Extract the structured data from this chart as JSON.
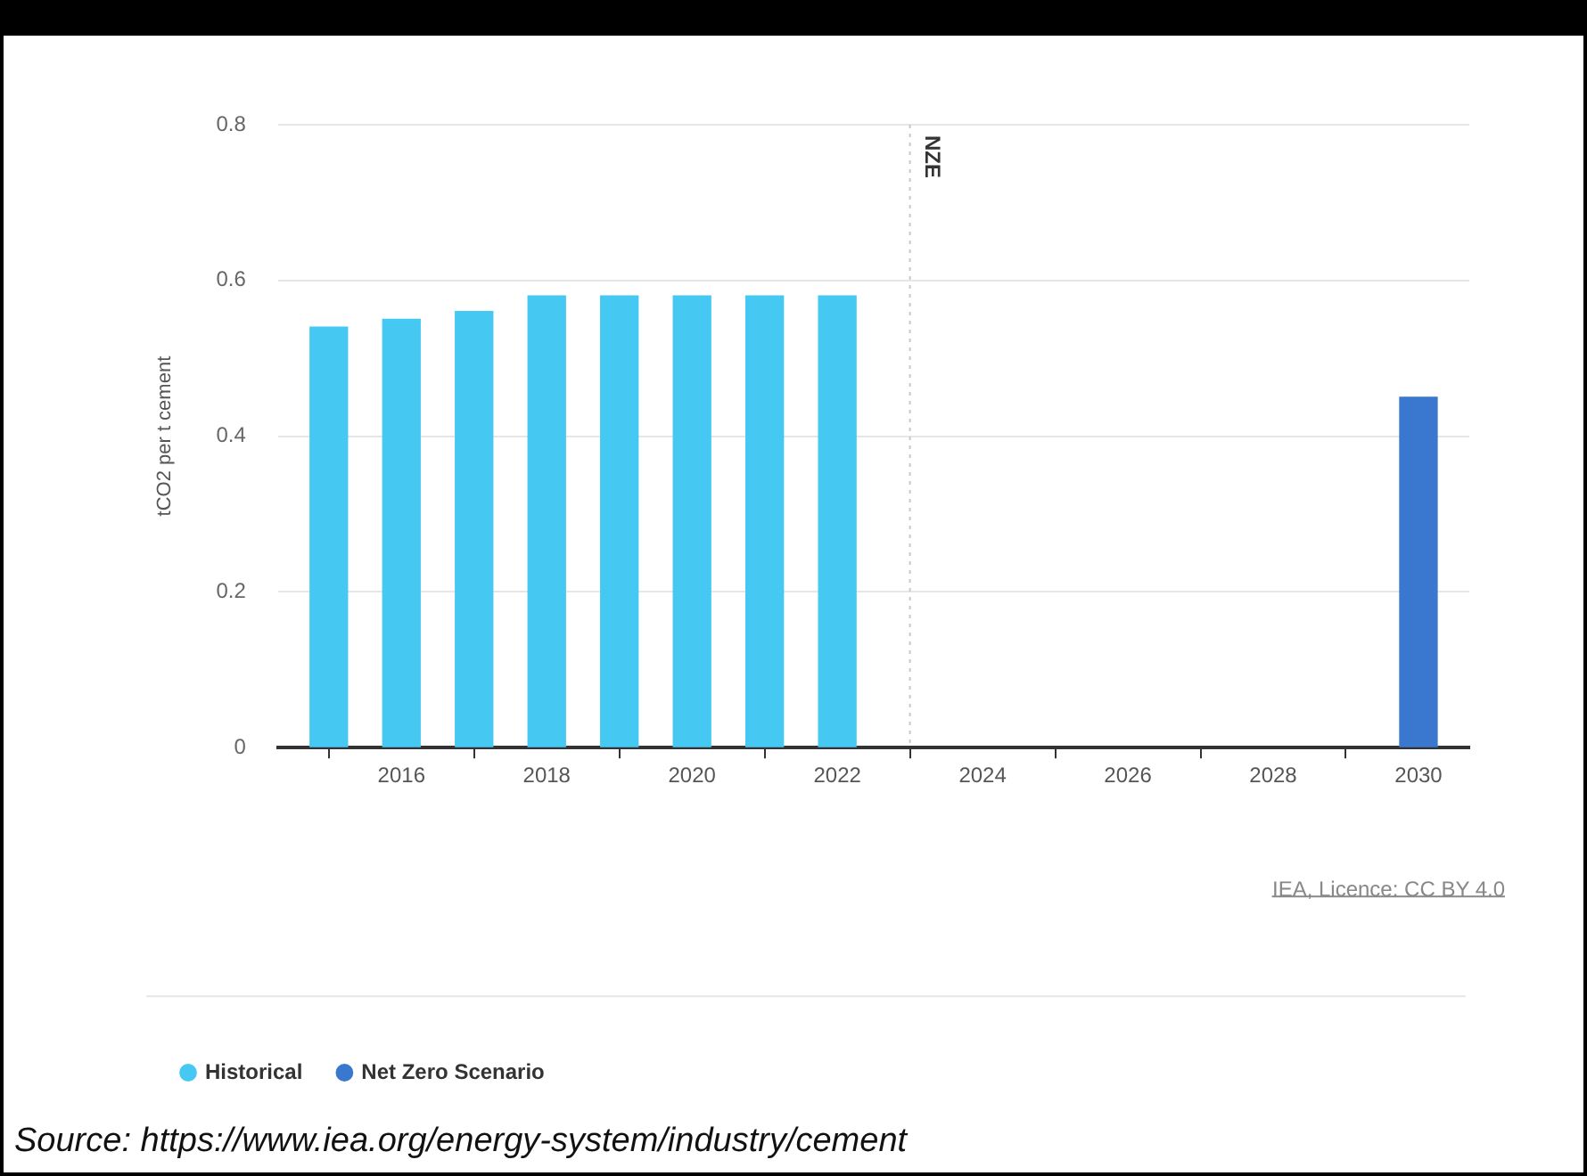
{
  "chart_data": {
    "type": "bar",
    "ylabel": "tCO2 per t cement",
    "x": [
      2015,
      2016,
      2017,
      2018,
      2019,
      2020,
      2021,
      2022,
      2030
    ],
    "series": [
      {
        "name": "Historical",
        "color": "#45c9f3",
        "values": [
          0.54,
          0.55,
          0.56,
          0.58,
          0.58,
          0.58,
          0.58,
          0.58,
          null
        ]
      },
      {
        "name": "Net Zero Scenario",
        "color": "#3a78d0",
        "values": [
          null,
          null,
          null,
          null,
          null,
          null,
          null,
          null,
          0.45
        ]
      }
    ],
    "xlim": [
      2014.3,
      2030.7
    ],
    "xticks": [
      2016,
      2018,
      2020,
      2022,
      2024,
      2026,
      2028,
      2030
    ],
    "ylim": [
      0,
      0.8
    ],
    "yticks": [
      0,
      0.2,
      0.4,
      0.6,
      0.8
    ],
    "ref_lines": [
      {
        "axis": "x",
        "value": 2023,
        "label": "NZE",
        "color": "#c8c8c8",
        "line_style": "dotted"
      }
    ],
    "annotations": [
      "IEA, Licence: CC BY 4.0",
      "Source: https://www.iea.org/energy-system/industry/cement"
    ],
    "grid": "y",
    "legend": "bottom left"
  }
}
